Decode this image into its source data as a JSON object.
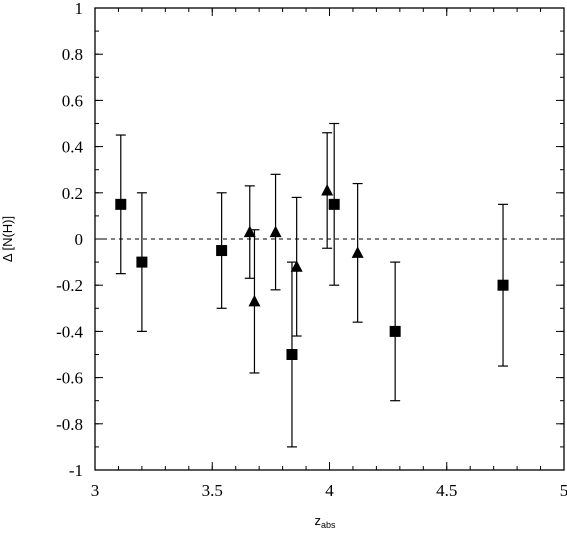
{
  "chart_data": {
    "type": "scatter",
    "title": "",
    "xlabel": "z",
    "xlabel_subscript": "abs",
    "ylabel": "Δ [N(H)]",
    "xlim": [
      3,
      5
    ],
    "ylim": [
      -1,
      1
    ],
    "xticks": [
      "3",
      "3.5",
      "4",
      "4.5",
      "5"
    ],
    "yticks": [
      "-1",
      "-0.8",
      "-0.6",
      "-0.4",
      "-0.2",
      "0",
      "0.2",
      "0.4",
      "0.6",
      "0.8",
      "1"
    ],
    "reference_line": {
      "y": 0,
      "style": "dashed"
    },
    "grid": false,
    "legend": "none",
    "series": [
      {
        "marker": "square",
        "points": [
          {
            "x": 3.11,
            "y": 0.15,
            "yerr": 0.3
          },
          {
            "x": 3.2,
            "y": -0.1,
            "yerr": 0.3
          },
          {
            "x": 3.54,
            "y": -0.05,
            "yerr": 0.25
          },
          {
            "x": 3.84,
            "y": -0.5,
            "yerr": 0.4
          },
          {
            "x": 4.02,
            "y": 0.15,
            "yerr": 0.35
          },
          {
            "x": 4.28,
            "y": -0.4,
            "yerr": 0.3
          },
          {
            "x": 4.74,
            "y": -0.2,
            "yerr": 0.35
          }
        ]
      },
      {
        "marker": "triangle",
        "points": [
          {
            "x": 3.66,
            "y": 0.03,
            "yerr": 0.2
          },
          {
            "x": 3.68,
            "y": -0.27,
            "yerr": 0.31
          },
          {
            "x": 3.77,
            "y": 0.03,
            "yerr": 0.25
          },
          {
            "x": 3.86,
            "y": -0.12,
            "yerr": 0.3
          },
          {
            "x": 3.99,
            "y": 0.21,
            "yerr": 0.25
          },
          {
            "x": 4.12,
            "y": -0.06,
            "yerr": 0.3
          }
        ]
      }
    ]
  }
}
